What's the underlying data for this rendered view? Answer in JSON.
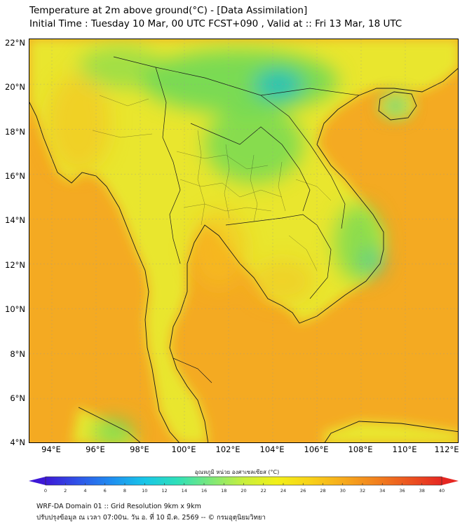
{
  "header": {
    "title": "Temperature at 2m above ground(°C) - [Data Assimilation]",
    "subtitle": "Initial Time : Tuesday 10 Mar, 00 UTC FCST+090 , Valid at :: Fri 13 Mar, 18 UTC"
  },
  "axes": {
    "lat_labels": [
      "22°N",
      "20°N",
      "18°N",
      "16°N",
      "14°N",
      "12°N",
      "10°N",
      "8°N",
      "6°N",
      "4°N"
    ],
    "lon_labels": [
      "94°E",
      "96°E",
      "98°E",
      "100°E",
      "102°E",
      "104°E",
      "106°E",
      "108°E",
      "110°E",
      "112°E"
    ]
  },
  "colorbar": {
    "title": "อุณหภูมิ หน่วย องศาเซลเซียส (°C)",
    "ticks": [
      "0",
      "2",
      "4",
      "6",
      "8",
      "10",
      "12",
      "14",
      "16",
      "18",
      "20",
      "22",
      "24",
      "26",
      "28",
      "30",
      "32",
      "34",
      "36",
      "38",
      "40"
    ],
    "min": 0,
    "max": 40,
    "colors": [
      "#3d18d6",
      "#2f55e8",
      "#1f8ef0",
      "#18c6e8",
      "#2fe0b8",
      "#7de87a",
      "#c8ef3c",
      "#f2f018",
      "#f8d218",
      "#f7ab1c",
      "#f2821e",
      "#ec5520",
      "#e62722"
    ]
  },
  "footer": {
    "line1": "WRF-DA Domain 01 :: Grid Resolution 9km x 9km",
    "line2": "ปรับปรุงข้อมูล ณ เวลา 07:00น. วัน อ. ที่ 10 มี.ค. 2569 -- © กรมอุตุนิยมวิทยา"
  },
  "map_colors": {
    "ocean": "#f4aa22",
    "land": "#e9e62e",
    "warm_land": "#f6c020",
    "cool_highland": "#66d85a",
    "cold_peak": "#1ec0c0",
    "coast_line": "#1a1a1a"
  }
}
